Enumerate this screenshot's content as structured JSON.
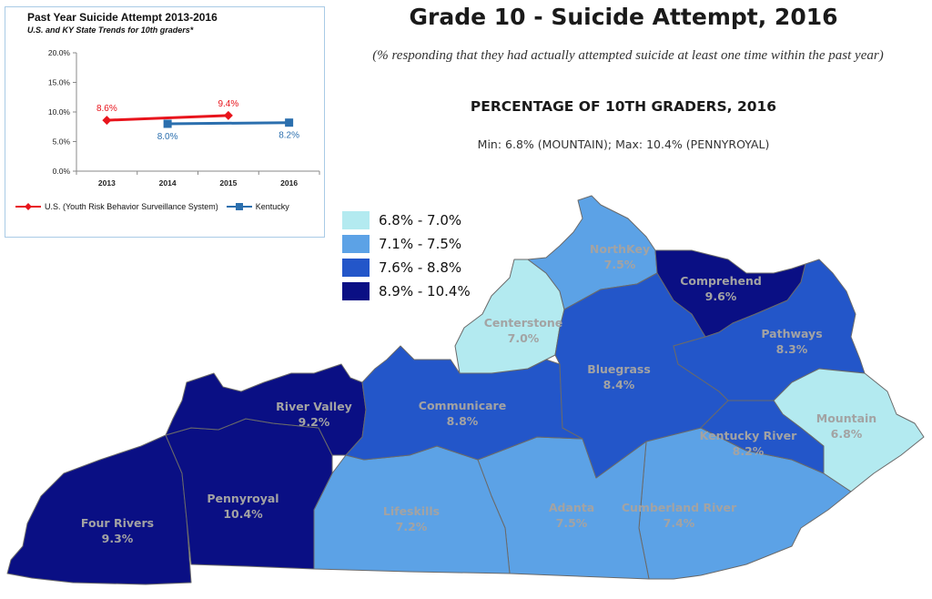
{
  "title": "Grade 10 - Suicide Attempt, 2016",
  "subtitle": "(% responding that they had actually attempted suicide at least one time within the past year)",
  "heading": "PERCENTAGE OF 10TH GRADERS, 2016",
  "minmax": "Min: 6.8% (MOUNTAIN); Max: 10.4% (PENNYROYAL)",
  "colors": {
    "bin1": "#b3eaf0",
    "bin2": "#5ca2e6",
    "bin3": "#2356c9",
    "bin4": "#0a0f84",
    "border": "#6a6a6a",
    "label_text": "#a3a3a3",
    "us_line": "#e8141c",
    "ky_line": "#2b6fae"
  },
  "legend": [
    {
      "label": "6.8% - 7.0%",
      "color": "#b3eaf0"
    },
    {
      "label": "7.1% - 7.5%",
      "color": "#5ca2e6"
    },
    {
      "label": "7.6% - 8.8%",
      "color": "#2356c9"
    },
    {
      "label": "8.9% - 10.4%",
      "color": "#0a0f84"
    }
  ],
  "regions": [
    {
      "name": "NorthKey",
      "value": "7.5%",
      "bin": "bin2"
    },
    {
      "name": "Comprehend",
      "value": "9.6%",
      "bin": "bin4"
    },
    {
      "name": "Centerstone",
      "value": "7.0%",
      "bin": "bin1"
    },
    {
      "name": "Pathways",
      "value": "8.3%",
      "bin": "bin3"
    },
    {
      "name": "Bluegrass",
      "value": "8.4%",
      "bin": "bin3"
    },
    {
      "name": "River Valley",
      "value": "9.2%",
      "bin": "bin4"
    },
    {
      "name": "Communicare",
      "value": "8.8%",
      "bin": "bin3"
    },
    {
      "name": "Mountain",
      "value": "6.8%",
      "bin": "bin1"
    },
    {
      "name": "Kentucky River",
      "value": "8.2%",
      "bin": "bin3"
    },
    {
      "name": "Pennyroyal",
      "value": "10.4%",
      "bin": "bin4"
    },
    {
      "name": "Lifeskills",
      "value": "7.2%",
      "bin": "bin2"
    },
    {
      "name": "Adanta",
      "value": "7.5%",
      "bin": "bin2"
    },
    {
      "name": "Cumberland River",
      "value": "7.4%",
      "bin": "bin2"
    },
    {
      "name": "Four Rivers",
      "value": "9.3%",
      "bin": "bin4"
    }
  ],
  "chart_data": {
    "type": "line",
    "title": "Past Year Suicide Attempt 2013-2016",
    "subtitle": "U.S. and KY State Trends for 10th graders*",
    "categories": [
      "2013",
      "2014",
      "2015",
      "2016"
    ],
    "ylim": [
      0,
      20
    ],
    "yticks": [
      "0.0%",
      "5.0%",
      "10.0%",
      "15.0%",
      "20.0%"
    ],
    "series": [
      {
        "name": "U.S. (Youth Risk Behavior Surveillance System)",
        "color": "#e8141c",
        "marker": "diamond",
        "values": [
          8.6,
          null,
          9.4,
          null
        ],
        "labels": [
          "8.6%",
          null,
          "9.4%",
          null
        ]
      },
      {
        "name": "Kentucky",
        "color": "#2b6fae",
        "marker": "square",
        "values": [
          null,
          8.0,
          null,
          8.2
        ],
        "labels": [
          null,
          "8.0%",
          null,
          "8.2%"
        ]
      }
    ]
  }
}
